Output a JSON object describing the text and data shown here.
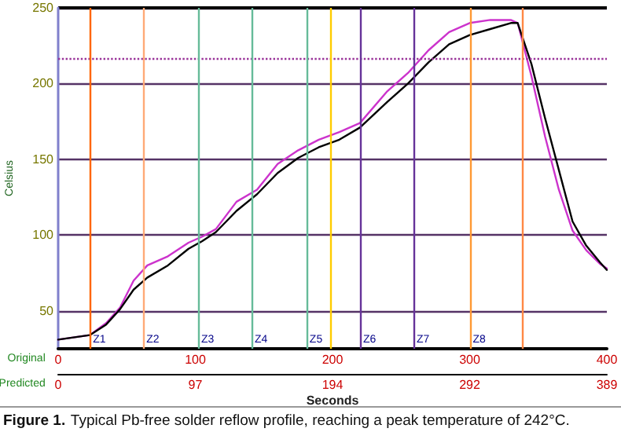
{
  "chart_data": {
    "type": "line",
    "xlabel": "Seconds",
    "ylabel": "Celsius",
    "x2label": "Predicted",
    "annotations": [
      "Original",
      "Figure 1. Typical Pb-free solder reflow profile, reaching a peak temperature of 242°C."
    ],
    "xlim": [
      0,
      400
    ],
    "xticks": [
      0,
      100,
      200,
      300,
      400
    ],
    "x2lim": [
      0,
      389
    ],
    "x2ticks": [
      0,
      {
        "value": 97.25,
        "label": "97"
      },
      {
        "value": 194.5,
        "label": "194"
      },
      {
        "value": 291.75,
        "label": "292"
      },
      389
    ],
    "ylim": [
      25,
      250
    ],
    "yticks": [
      50,
      100,
      150,
      200,
      250
    ],
    "grid": "y",
    "marker": "none",
    "line_style": "solid",
    "series": [
      {
        "color": "#cc33cc",
        "x": [
          0,
          23,
          35,
          45,
          55,
          65,
          80,
          95,
          105,
          115,
          130,
          145,
          160,
          175,
          190,
          205,
          220,
          240,
          255,
          270,
          285,
          300,
          315,
          330,
          335,
          345,
          355,
          365,
          375,
          385,
          395,
          400
        ],
        "values": [
          31,
          34,
          42,
          52,
          70,
          80,
          86,
          95,
          99,
          104,
          122,
          130,
          147,
          156,
          163,
          168,
          174,
          195,
          207,
          222,
          234,
          240,
          242,
          242,
          240,
          205,
          165,
          130,
          103,
          90,
          81,
          78
        ]
      },
      {
        "color": "#000000",
        "x": [
          0,
          23,
          35,
          45,
          55,
          65,
          80,
          95,
          105,
          115,
          130,
          145,
          160,
          175,
          190,
          205,
          220,
          240,
          255,
          270,
          285,
          300,
          315,
          330,
          335,
          345,
          355,
          365,
          375,
          385,
          395,
          400
        ],
        "values": [
          31,
          34,
          41,
          51,
          64,
          72,
          80,
          91,
          96,
          102,
          116,
          127,
          141,
          151,
          158,
          163,
          171,
          188,
          200,
          214,
          226,
          232,
          236,
          240,
          240,
          213,
          177,
          143,
          109,
          93,
          82,
          77
        ]
      }
    ],
    "ref_lines": [
      {
        "axis": "y",
        "value": 217,
        "label": null,
        "color": "#993399",
        "line_style": "dotted"
      },
      {
        "axis": "x",
        "value": 23,
        "label": "Z1",
        "color": "#ff6600"
      },
      {
        "axis": "x",
        "value": 62,
        "label": "Z2",
        "color": "#ffaa77"
      },
      {
        "axis": "x",
        "value": 102,
        "label": "Z3",
        "color": "#66bb99"
      },
      {
        "axis": "x",
        "value": 141,
        "label": "Z4",
        "color": "#66bb99"
      },
      {
        "axis": "x",
        "value": 181,
        "label": "Z5",
        "color": "#66bb99"
      },
      {
        "axis": "x",
        "value": 199,
        "label": null,
        "color": "#ffcc00"
      },
      {
        "axis": "x",
        "value": 220,
        "label": "Z6",
        "color": "#663399"
      },
      {
        "axis": "x",
        "value": 259,
        "label": "Z7",
        "color": "#663399"
      },
      {
        "axis": "x",
        "value": 300,
        "label": "Z8",
        "color": "#ff9933"
      },
      {
        "axis": "x",
        "value": 338,
        "label": null,
        "color": "#ff8844"
      }
    ]
  }
}
